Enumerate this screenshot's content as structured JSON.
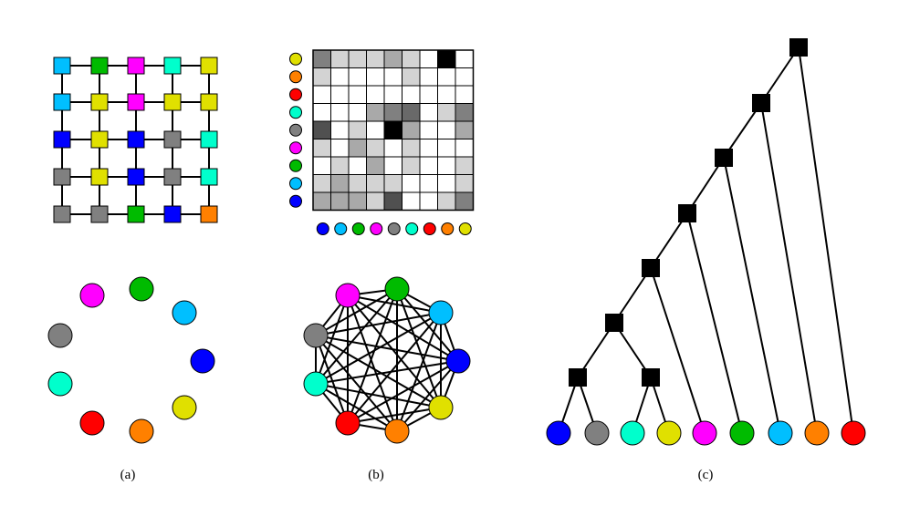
{
  "captions": {
    "a": "(a)",
    "b": "(b)",
    "c": "(c)"
  },
  "colors": {
    "cyan": "#00bfff",
    "green": "#00bb00",
    "magenta": "#ff00ff",
    "teal": "#00ffcc",
    "yellow": "#e0e000",
    "blue": "#0000ff",
    "gray": "#808080",
    "orange": "#ff8000",
    "red": "#ff0000"
  },
  "lattice": {
    "rows": [
      [
        "cyan",
        "green",
        "magenta",
        "teal",
        "yellow"
      ],
      [
        "cyan",
        "yellow",
        "magenta",
        "yellow",
        "yellow"
      ],
      [
        "blue",
        "yellow",
        "blue",
        "gray",
        "teal"
      ],
      [
        "gray",
        "yellow",
        "blue",
        "gray",
        "teal"
      ],
      [
        "gray",
        "gray",
        "green",
        "blue",
        "orange"
      ]
    ]
  },
  "ring": {
    "nodes": [
      "green",
      "cyan",
      "blue",
      "yellow",
      "orange",
      "red",
      "teal",
      "gray",
      "magenta"
    ]
  },
  "matrix": {
    "row_labels": [
      "yellow",
      "orange",
      "red",
      "teal",
      "gray",
      "magenta",
      "green",
      "cyan",
      "blue"
    ],
    "col_labels": [
      "blue",
      "cyan",
      "green",
      "magenta",
      "gray",
      "teal",
      "red",
      "orange",
      "yellow"
    ],
    "shades": [
      [
        "#808080",
        "#d3d3d3",
        "#d3d3d3",
        "#d3d3d3",
        "#a9a9a9",
        "#d3d3d3",
        "#ffffff",
        "#000000",
        "#ffffff"
      ],
      [
        "#d3d3d3",
        "#ffffff",
        "#ffffff",
        "#ffffff",
        "#ffffff",
        "#d3d3d3",
        "#ffffff",
        "#ffffff",
        "#ffffff"
      ],
      [
        "#ffffff",
        "#ffffff",
        "#ffffff",
        "#ffffff",
        "#ffffff",
        "#ffffff",
        "#ffffff",
        "#ffffff",
        "#ffffff"
      ],
      [
        "#ffffff",
        "#ffffff",
        "#ffffff",
        "#a9a9a9",
        "#808080",
        "#696969",
        "#ffffff",
        "#d3d3d3",
        "#808080"
      ],
      [
        "#505050",
        "#ffffff",
        "#d3d3d3",
        "#ffffff",
        "#000000",
        "#a9a9a9",
        "#ffffff",
        "#ffffff",
        "#a9a9a9"
      ],
      [
        "#d3d3d3",
        "#ffffff",
        "#a9a9a9",
        "#d3d3d3",
        "#ffffff",
        "#d3d3d3",
        "#ffffff",
        "#ffffff",
        "#ffffff"
      ],
      [
        "#ffffff",
        "#d3d3d3",
        "#ffffff",
        "#a9a9a9",
        "#ffffff",
        "#d3d3d3",
        "#ffffff",
        "#ffffff",
        "#d3d3d3"
      ],
      [
        "#d3d3d3",
        "#a9a9a9",
        "#d3d3d3",
        "#d3d3d3",
        "#d3d3d3",
        "#ffffff",
        "#ffffff",
        "#ffffff",
        "#d3d3d3"
      ],
      [
        "#a9a9a9",
        "#a9a9a9",
        "#a9a9a9",
        "#d3d3d3",
        "#505050",
        "#ffffff",
        "#ffffff",
        "#d3d3d3",
        "#808080"
      ]
    ]
  },
  "complete_graph": {
    "nodes": [
      "green",
      "cyan",
      "blue",
      "yellow",
      "orange",
      "red",
      "teal",
      "gray",
      "magenta"
    ]
  },
  "tree": {
    "leaves": [
      "blue",
      "gray",
      "teal",
      "yellow",
      "magenta",
      "green",
      "cyan",
      "orange",
      "red"
    ],
    "merges": [
      [
        0,
        1
      ],
      [
        2,
        3
      ],
      [
        9,
        10
      ],
      [
        11,
        4
      ],
      [
        12,
        5
      ],
      [
        13,
        6
      ],
      [
        14,
        7
      ],
      [
        15,
        8
      ]
    ]
  }
}
